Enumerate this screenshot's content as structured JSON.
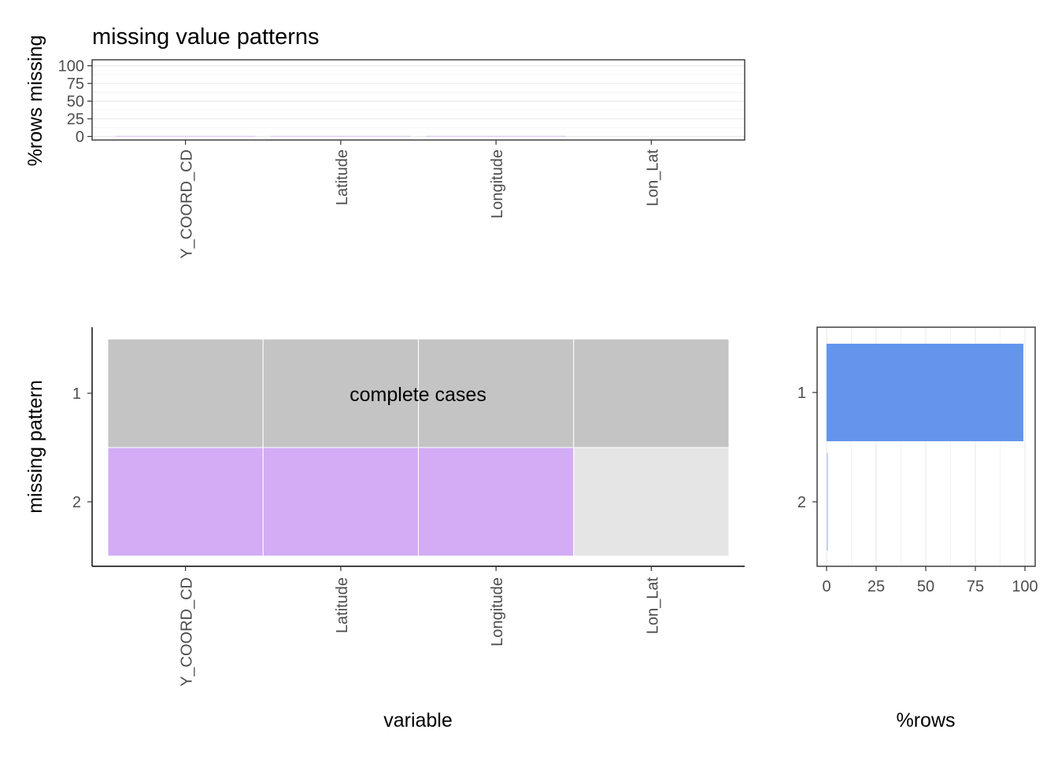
{
  "title": "missing value patterns",
  "colors": {
    "missing": "#d3acf5",
    "observed": "#e5e5e5",
    "complete": "#c4c4c4",
    "bar_primary": "#6495ed",
    "bar_secondary": "#c2d3f6",
    "grid": "#ebebeb",
    "axis_text": "#4d4d4d"
  },
  "chart_data": [
    {
      "type": "bar",
      "name": "rows-missing-per-variable",
      "ylabel": "%rows missing",
      "xlabel": "",
      "categories": [
        "Y_COORD_CD",
        "Latitude",
        "Longitude",
        "Lon_Lat"
      ],
      "values": [
        0.8,
        0.8,
        0.8,
        0
      ],
      "ylim": [
        0,
        100
      ],
      "yticks": [
        0,
        25,
        50,
        75,
        100
      ],
      "grid": true
    },
    {
      "type": "heatmap",
      "name": "missing-patterns",
      "xlabel": "variable",
      "ylabel": "missing pattern",
      "x": [
        "Y_COORD_CD",
        "Latitude",
        "Longitude",
        "Lon_Lat"
      ],
      "y": [
        "1",
        "2"
      ],
      "values": [
        [
          "complete",
          "complete",
          "complete",
          "complete"
        ],
        [
          "missing",
          "missing",
          "missing",
          "observed"
        ]
      ],
      "annotation": "complete cases",
      "grid": false
    },
    {
      "type": "bar",
      "name": "pattern-row-share",
      "orientation": "horizontal",
      "xlabel": "%rows",
      "ylabel": "",
      "categories": [
        "1",
        "2"
      ],
      "values": [
        99.2,
        0.8
      ],
      "xlim": [
        0,
        100
      ],
      "xticks": [
        0,
        25,
        50,
        75,
        100
      ],
      "grid": true
    }
  ]
}
